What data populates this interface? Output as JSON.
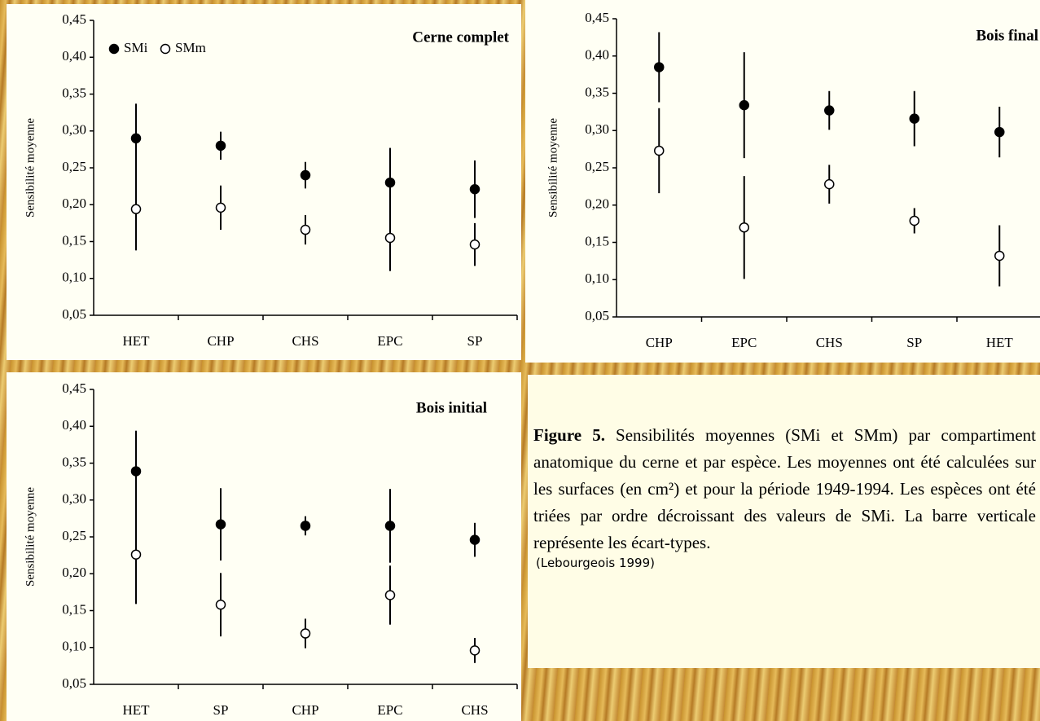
{
  "chart_data": [
    {
      "type": "errorbar",
      "title": "Cerne complet",
      "y_label": "Sensibilité moyenne",
      "categories": [
        "HET",
        "CHP",
        "CHS",
        "EPC",
        "SP"
      ],
      "series": [
        {
          "name": "SMi",
          "color": "#000000",
          "values": [
            0.29,
            0.28,
            0.24,
            0.23,
            0.221
          ],
          "errors": [
            0.047,
            0.019,
            0.018,
            0.047,
            0.039
          ]
        },
        {
          "name": "SMm",
          "color": "#ffffff",
          "values": [
            0.194,
            0.196,
            0.166,
            0.155,
            0.146
          ],
          "errors": [
            0.056,
            0.03,
            0.02,
            0.045,
            0.029
          ]
        }
      ],
      "ylim": [
        0.05,
        0.45
      ],
      "yticks": [
        {
          "value": 0.05,
          "label": "0,05"
        },
        {
          "value": 0.1,
          "label": "0,10"
        },
        {
          "value": 0.15,
          "label": "0,15"
        },
        {
          "value": 0.2,
          "label": "0,20"
        },
        {
          "value": 0.25,
          "label": "0,25"
        },
        {
          "value": 0.3,
          "label": "0,30"
        },
        {
          "value": 0.35,
          "label": "0,35"
        },
        {
          "value": 0.4,
          "label": "0,40"
        },
        {
          "value": 0.45,
          "label": "0,45"
        }
      ]
    },
    {
      "type": "errorbar",
      "title": "Bois final",
      "y_label": "Sensibilité moyenne",
      "categories": [
        "CHP",
        "EPC",
        "CHS",
        "SP",
        "HET"
      ],
      "series": [
        {
          "color": "#000000",
          "values": [
            0.385,
            0.334,
            0.327,
            0.316,
            0.298
          ],
          "errors": [
            0.047,
            0.071,
            0.026,
            0.037,
            0.034
          ]
        },
        {
          "color": "#ffffff",
          "values": [
            0.273,
            0.17,
            0.228,
            0.179,
            0.132
          ],
          "errors": [
            0.057,
            0.069,
            0.026,
            0.017,
            0.041
          ]
        }
      ],
      "ylim": [
        0.05,
        0.45
      ],
      "yticks": [
        {
          "value": 0.05,
          "label": "0,05"
        },
        {
          "value": 0.1,
          "label": "0,10"
        },
        {
          "value": 0.15,
          "label": "0,15"
        },
        {
          "value": 0.2,
          "label": "0,20"
        },
        {
          "value": 0.25,
          "label": "0,25"
        },
        {
          "value": 0.3,
          "label": "0,30"
        },
        {
          "value": 0.35,
          "label": "0,35"
        },
        {
          "value": 0.4,
          "label": "0,40"
        },
        {
          "value": 0.45,
          "label": "0,45"
        }
      ]
    },
    {
      "type": "errorbar",
      "title": "Bois initial",
      "y_label": "Sensibilité moyenne",
      "categories": [
        "HET",
        "SP",
        "CHP",
        "EPC",
        "CHS"
      ],
      "series": [
        {
          "color": "#000000",
          "values": [
            0.339,
            0.267,
            0.265,
            0.265,
            0.246
          ],
          "errors": [
            0.055,
            0.049,
            0.013,
            0.05,
            0.023
          ]
        },
        {
          "color": "#ffffff",
          "values": [
            0.226,
            0.158,
            0.119,
            0.171,
            0.096
          ],
          "errors": [
            0.067,
            0.043,
            0.02,
            0.04,
            0.017
          ]
        }
      ],
      "ylim": [
        0.05,
        0.45
      ],
      "yticks": [
        {
          "value": 0.05,
          "label": "0,05"
        },
        {
          "value": 0.1,
          "label": "0,10"
        },
        {
          "value": 0.15,
          "label": "0,15"
        },
        {
          "value": 0.2,
          "label": "0,20"
        },
        {
          "value": 0.25,
          "label": "0,25"
        },
        {
          "value": 0.3,
          "label": "0,30"
        },
        {
          "value": 0.35,
          "label": "0,35"
        },
        {
          "value": 0.4,
          "label": "0,40"
        },
        {
          "value": 0.45,
          "label": "0,45"
        }
      ]
    }
  ],
  "caption": {
    "label": "Figure 5.",
    "text": "Sensibilités moyennes (SMi et SMm) par compartiment anatomique du cerne et par espèce. Les moyennes ont été calculées sur les surfaces (en cm²) et pour la période 1949-1994. Les espèces ont été triées par ordre décroissant des valeurs de SMi. La barre verticale représente les écart-types.",
    "source": "(Lebourgeois 1999)"
  }
}
